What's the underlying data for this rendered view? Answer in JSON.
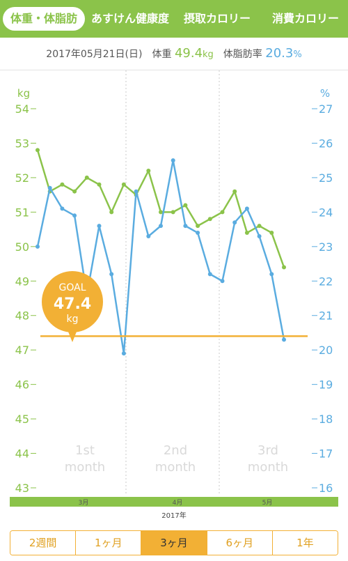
{
  "tabs": [
    {
      "label": "体重・体脂肪",
      "active": true
    },
    {
      "label": "あすけん健康度",
      "active": false
    },
    {
      "label": "摂取カロリー",
      "active": false
    },
    {
      "label": "消費カロリー",
      "active": false
    }
  ],
  "summary": {
    "date": "2017年05月21日(日)",
    "weight_label": "体重",
    "weight_value": "49.4",
    "weight_unit": "kg",
    "fat_label": "体脂肪率",
    "fat_value": "20.3",
    "fat_unit": "%"
  },
  "colors": {
    "weight": "#8bc34a",
    "fat": "#5aace0",
    "goal": "#f2b035",
    "month_label": "#d9d9d9"
  },
  "chart_data": {
    "type": "line",
    "left_axis": {
      "unit": "kg",
      "min": 43,
      "max": 54,
      "ticks": [
        54,
        53,
        52,
        51,
        50,
        49,
        48,
        47,
        46,
        45,
        44,
        43
      ]
    },
    "right_axis": {
      "unit": "%",
      "min": 16,
      "max": 27,
      "ticks": [
        27,
        26,
        25,
        24,
        23,
        22,
        21,
        20,
        19,
        18,
        17,
        16
      ]
    },
    "x_month_labels": [
      "3月",
      "4月",
      "5月"
    ],
    "x_year_label": "2017年",
    "period_labels": [
      {
        "line1": "1st",
        "line2": "month"
      },
      {
        "line1": "2nd",
        "line2": "month"
      },
      {
        "line1": "3rd",
        "line2": "month"
      }
    ],
    "series": [
      {
        "name": "体重",
        "axis": "left",
        "x": [
          0,
          0.5,
          1,
          1.5,
          2,
          2.5,
          3,
          3.5,
          4,
          4.5,
          5,
          5.5,
          6,
          6.5,
          7,
          7.5,
          8,
          8.5,
          9,
          9.5,
          10,
          10.5
        ],
        "values": [
          52.8,
          51.6,
          51.8,
          51.6,
          52.0,
          51.8,
          51.0,
          51.8,
          51.5,
          52.2,
          51.0,
          51.0,
          51.2,
          50.6,
          50.8,
          51.0,
          51.6,
          50.4,
          50.6,
          50.4,
          49.4,
          null
        ]
      },
      {
        "name": "体脂肪率",
        "axis": "right",
        "x": [
          0,
          0.5,
          1,
          1.5,
          2,
          2.5,
          3,
          3.5,
          4,
          4.5,
          5,
          5.5,
          6,
          6.5,
          7,
          7.5,
          8,
          8.5,
          9,
          9.5,
          10,
          10.5
        ],
        "values": [
          23.0,
          24.7,
          24.1,
          23.9,
          21.6,
          23.6,
          22.2,
          19.9,
          24.6,
          23.3,
          23.6,
          25.5,
          23.6,
          23.4,
          22.2,
          22.0,
          23.7,
          24.1,
          23.3,
          22.2,
          20.3,
          null
        ]
      }
    ],
    "goal": {
      "label": "GOAL",
      "value": "47.4",
      "unit": "kg",
      "y": 47.4
    }
  },
  "range_buttons": [
    {
      "label": "2週間",
      "active": false
    },
    {
      "label": "1ヶ月",
      "active": false
    },
    {
      "label": "3ヶ月",
      "active": true
    },
    {
      "label": "6ヶ月",
      "active": false
    },
    {
      "label": "1年",
      "active": false
    }
  ]
}
